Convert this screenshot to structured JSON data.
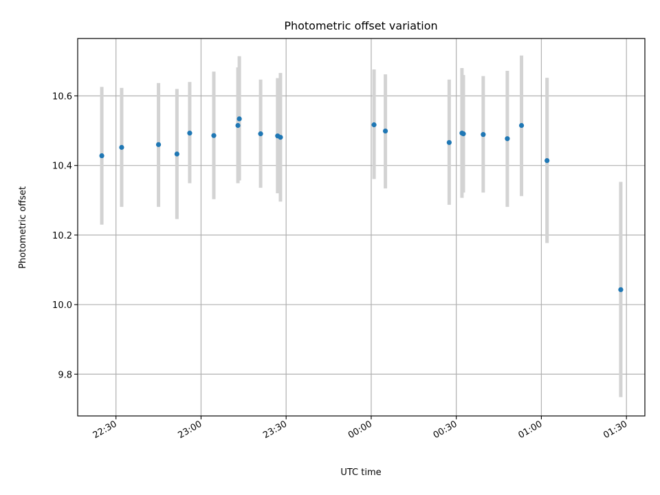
{
  "chart_data": {
    "type": "scatter",
    "title": "Photometric offset variation",
    "xlabel": "UTC time",
    "ylabel": "Photometric offset",
    "x_ticks": [
      "22:30",
      "23:00",
      "23:30",
      "00:00",
      "00:30",
      "01:00",
      "01:30"
    ],
    "y_ticks": [
      "9.8",
      "10.0",
      "10.2",
      "10.4",
      "10.6"
    ],
    "ylim": [
      9.68,
      10.765
    ],
    "xlim": [
      "22:16:30",
      "01:36:30"
    ],
    "grid": true,
    "colors": {
      "points": "#1f77b4",
      "error_bars": "#d3d3d3",
      "grid": "#b0b0b0"
    },
    "points": [
      {
        "t": "22:25:00",
        "y": 10.428,
        "y_low": 10.23,
        "y_high": 10.626
      },
      {
        "t": "22:32:00",
        "y": 10.452,
        "y_low": 10.281,
        "y_high": 10.623
      },
      {
        "t": "22:45:00",
        "y": 10.46,
        "y_low": 10.281,
        "y_high": 10.637
      },
      {
        "t": "22:51:30",
        "y": 10.433,
        "y_low": 10.246,
        "y_high": 10.62
      },
      {
        "t": "22:56:00",
        "y": 10.493,
        "y_low": 10.349,
        "y_high": 10.64
      },
      {
        "t": "23:04:30",
        "y": 10.486,
        "y_low": 10.303,
        "y_high": 10.67
      },
      {
        "t": "23:13:00",
        "y": 10.515,
        "y_low": 10.349,
        "y_high": 10.682
      },
      {
        "t": "23:13:30",
        "y": 10.534,
        "y_low": 10.357,
        "y_high": 10.714
      },
      {
        "t": "23:21:00",
        "y": 10.491,
        "y_low": 10.336,
        "y_high": 10.647
      },
      {
        "t": "23:27:00",
        "y": 10.485,
        "y_low": 10.32,
        "y_high": 10.651
      },
      {
        "t": "23:28:00",
        "y": 10.481,
        "y_low": 10.296,
        "y_high": 10.666
      },
      {
        "t": "00:01:00",
        "y": 10.517,
        "y_low": 10.361,
        "y_high": 10.676
      },
      {
        "t": "00:05:00",
        "y": 10.499,
        "y_low": 10.334,
        "y_high": 10.662
      },
      {
        "t": "00:27:30",
        "y": 10.466,
        "y_low": 10.287,
        "y_high": 10.647
      },
      {
        "t": "00:32:00",
        "y": 10.493,
        "y_low": 10.307,
        "y_high": 10.68
      },
      {
        "t": "00:32:30",
        "y": 10.491,
        "y_low": 10.322,
        "y_high": 10.66
      },
      {
        "t": "00:39:30",
        "y": 10.489,
        "y_low": 10.322,
        "y_high": 10.657
      },
      {
        "t": "00:48:00",
        "y": 10.477,
        "y_low": 10.281,
        "y_high": 10.672
      },
      {
        "t": "00:53:00",
        "y": 10.515,
        "y_low": 10.312,
        "y_high": 10.716
      },
      {
        "t": "01:02:00",
        "y": 10.414,
        "y_low": 10.177,
        "y_high": 10.652
      },
      {
        "t": "01:28:00",
        "y": 10.043,
        "y_low": 9.734,
        "y_high": 10.353
      }
    ]
  }
}
